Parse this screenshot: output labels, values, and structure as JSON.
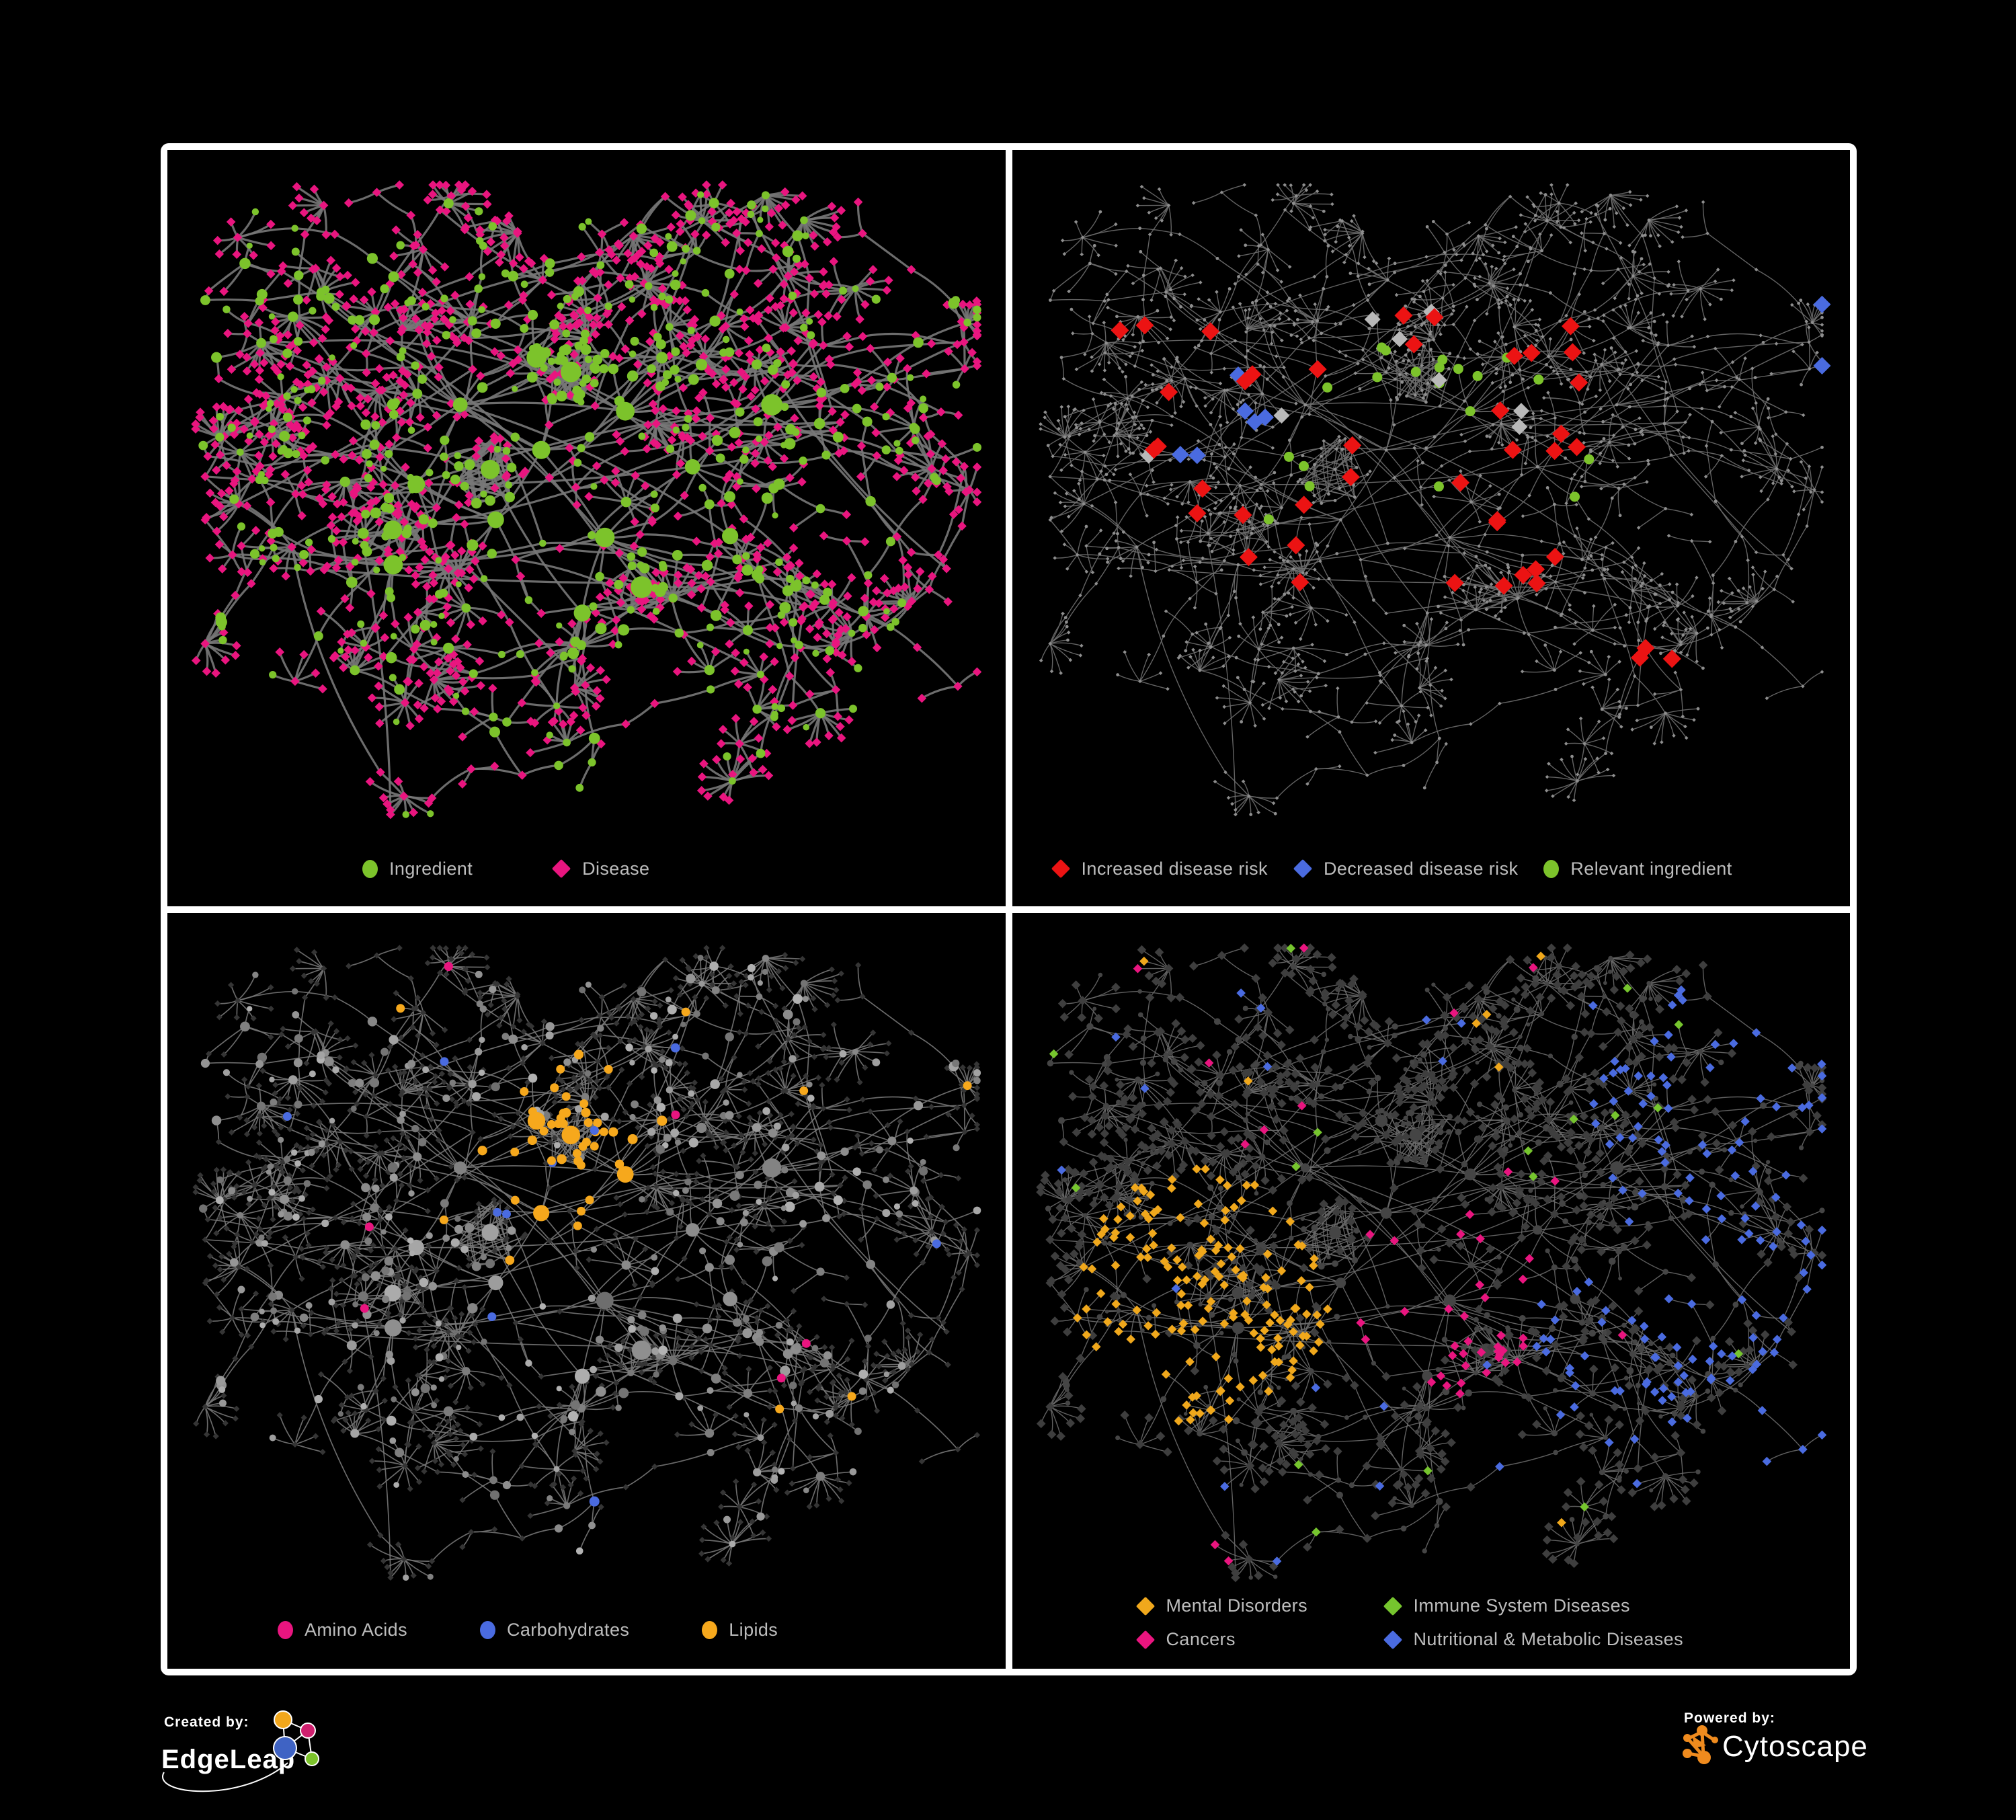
{
  "figure": {
    "background": "#000000",
    "frame_color": "#ffffff"
  },
  "panels": [
    {
      "name": "ingredient-disease-network",
      "legend": [
        {
          "shape": "circle",
          "color": "#7cc32b",
          "label": "Ingredient"
        },
        {
          "shape": "diamond",
          "color": "#e9157f",
          "label": "Disease"
        }
      ]
    },
    {
      "name": "disease-risk-network",
      "legend": [
        {
          "shape": "diamond",
          "color": "#ec1313",
          "label": "Increased disease risk"
        },
        {
          "shape": "diamond",
          "color": "#4a6be0",
          "label": "Decreased disease risk"
        },
        {
          "shape": "circle",
          "color": "#7cc32b",
          "label": "Relevant ingredient"
        }
      ]
    },
    {
      "name": "nutrient-class-network",
      "legend": [
        {
          "shape": "circle",
          "color": "#e9157f",
          "label": "Amino Acids"
        },
        {
          "shape": "circle",
          "color": "#4a6be0",
          "label": "Carbohydrates"
        },
        {
          "shape": "circle",
          "color": "#f6a81c",
          "label": "Lipids"
        }
      ]
    },
    {
      "name": "disease-class-network",
      "legend": [
        {
          "shape": "diamond",
          "color": "#f0a81c",
          "label": "Mental Disorders"
        },
        {
          "shape": "diamond",
          "color": "#76c52e",
          "label": "Immune System Diseases"
        },
        {
          "shape": "diamond",
          "color": "#e9157f",
          "label": "Cancers"
        },
        {
          "shape": "diamond",
          "color": "#4a6be0",
          "label": "Nutritional & Metabolic Diseases"
        }
      ]
    }
  ],
  "network_styles": {
    "panel1": {
      "edge": "#787878",
      "edge_width": 3.2,
      "ingredient": "#7cc32b",
      "disease": "#e9157f"
    },
    "panel2": {
      "edge": "#6e6e6e",
      "edge_width": 1.4,
      "base": "#8e8e8e",
      "increased": "#ec1313",
      "decreased": "#4a6be0",
      "unchanged": "#b9b9b9",
      "relevant": "#7cc32b"
    },
    "panel3": {
      "edge": "#757575",
      "edge_width": 1.7,
      "disease": "#353535",
      "ingredient": "#9a9a9a",
      "amino": "#e9157f",
      "carb": "#4a6be0",
      "lipid": "#f6a81c"
    },
    "panel4": {
      "edge": "#6a6a6a",
      "edge_width": 1.4,
      "ingredient": "#454545",
      "disease": "#3e3e3e",
      "mental": "#f0a81c",
      "immune": "#76c52e",
      "cancer": "#e9157f",
      "nutri": "#4a6be0"
    }
  },
  "footer": {
    "created_by_label": "Created by:",
    "created_by_brand": "EdgeLeap",
    "powered_by_label": "Powered by:",
    "powered_by_brand": "Cytoscape"
  },
  "logo_colors": {
    "edgeleap_yellow": "#f2a71c",
    "edgeleap_pink": "#cf1f6e",
    "edgeleap_blue": "#3f63c4",
    "edgeleap_green": "#7cc32b",
    "cytoscape_orange": "#ef8b1e"
  }
}
